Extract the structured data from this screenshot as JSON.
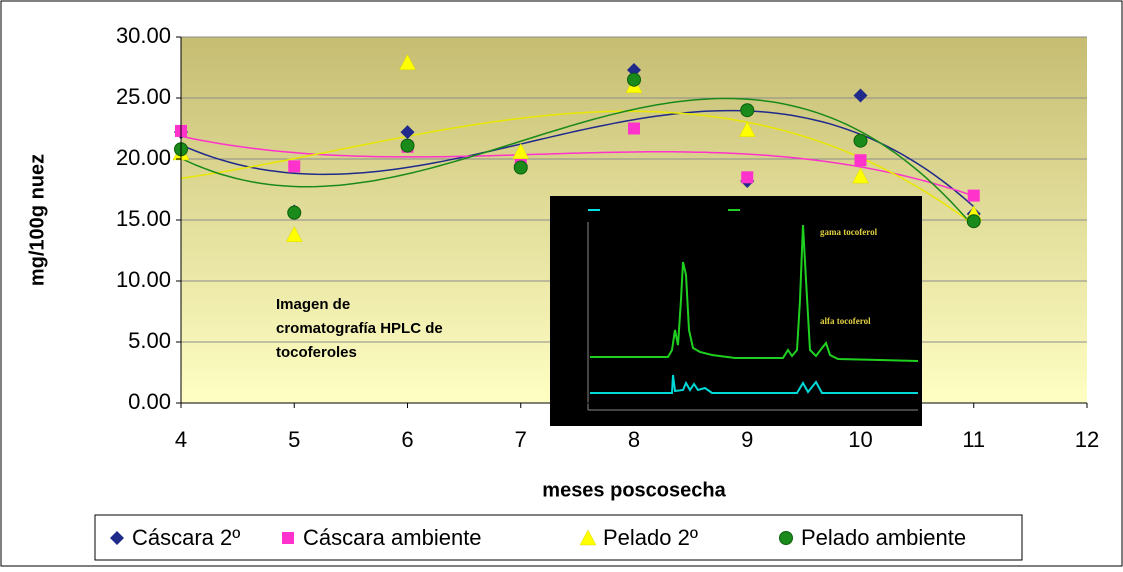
{
  "chart_data": {
    "type": "scatter",
    "xlabel": "meses poscosecha",
    "ylabel": "mg/100g nuez",
    "xlim": [
      4,
      12
    ],
    "xticks": [
      4,
      5,
      6,
      7,
      8,
      9,
      10,
      11,
      12
    ],
    "ylim": [
      0,
      30
    ],
    "yticks": [
      {
        "value": 0,
        "label": "0.00"
      },
      {
        "value": 5,
        "label": "5.00"
      },
      {
        "value": 10,
        "label": "10.00"
      },
      {
        "value": 15,
        "label": "15.00"
      },
      {
        "value": 20,
        "label": "20.00"
      },
      {
        "value": 25,
        "label": "25.00"
      },
      {
        "value": 30,
        "label": "30.00"
      }
    ],
    "grid": true,
    "trendline": {
      "type": "polynomial",
      "order": 3
    },
    "x": [
      4,
      5,
      6,
      7,
      8,
      9,
      10,
      11
    ],
    "series": [
      {
        "name": "Cáscara 2º",
        "marker": "diamond",
        "color": "#1f2a8a",
        "values": [
          22.2,
          15.7,
          22.2,
          19.5,
          27.3,
          18.2,
          25.2,
          15.5
        ]
      },
      {
        "name": "Cáscara ambiente",
        "marker": "square",
        "color": "#ff33cc",
        "values": [
          22.3,
          19.4,
          21.0,
          19.6,
          22.5,
          18.5,
          19.9,
          17.0
        ]
      },
      {
        "name": "Pelado 2º",
        "marker": "triangle",
        "color": "#ffff00",
        "values": [
          20.5,
          13.8,
          27.9,
          20.6,
          26.0,
          22.4,
          18.6,
          15.5
        ]
      },
      {
        "name": "Pelado ambiente",
        "marker": "circle",
        "color": "#1a8a1a",
        "values": [
          20.8,
          15.6,
          21.1,
          19.3,
          26.5,
          24.0,
          21.5,
          14.9
        ]
      }
    ],
    "annotation": [
      "Imagen de",
      "cromatografía HPLC de",
      "tocoferoles"
    ],
    "inset_labels": [
      "gama tocoferol",
      "alfa tocoferol"
    ]
  }
}
